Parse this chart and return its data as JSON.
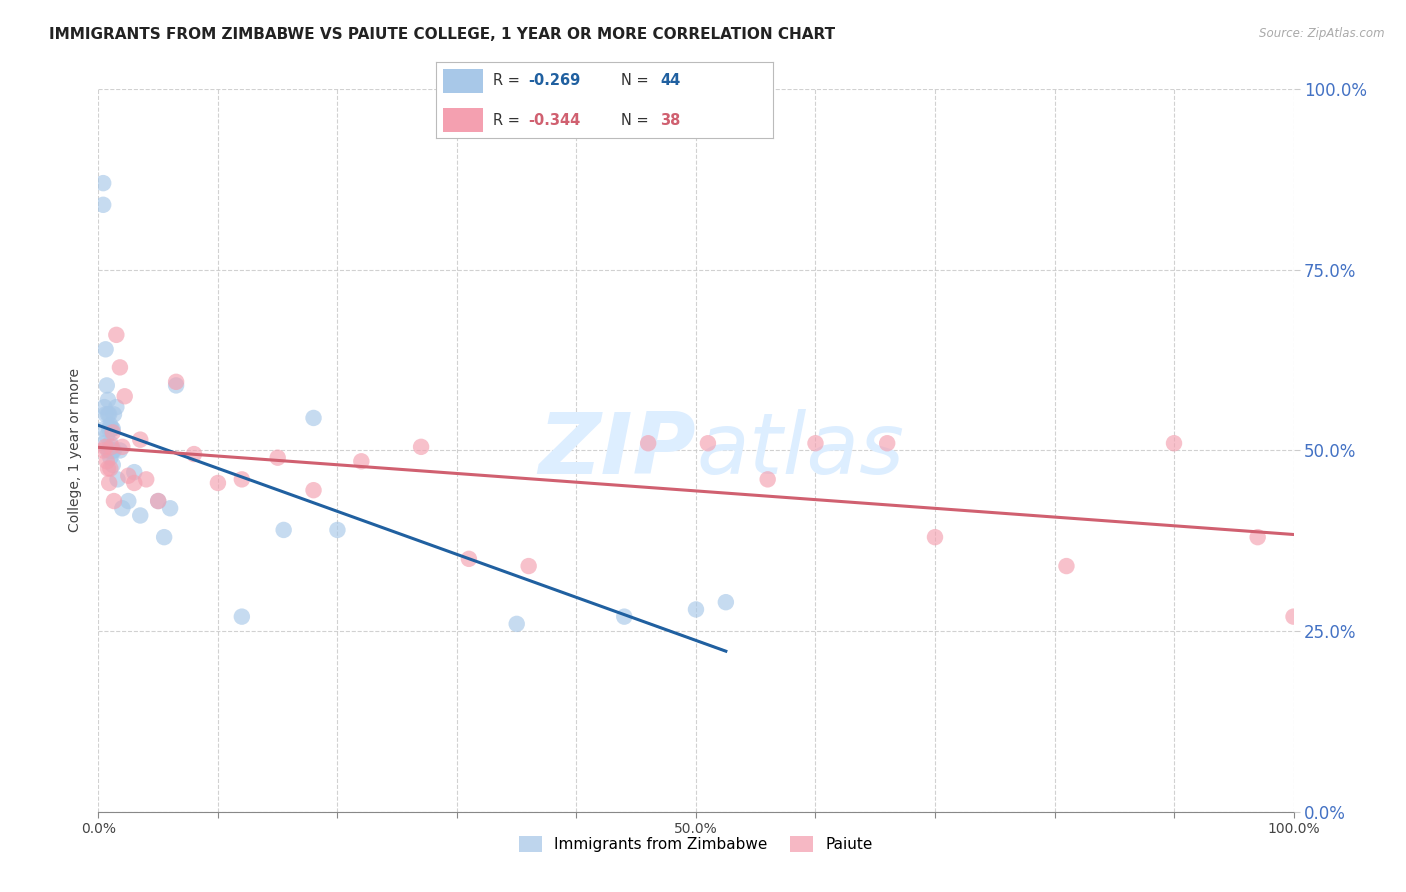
{
  "title": "IMMIGRANTS FROM ZIMBABWE VS PAIUTE COLLEGE, 1 YEAR OR MORE CORRELATION CHART",
  "source": "Source: ZipAtlas.com",
  "ylabel": "College, 1 year or more",
  "legend_label1": "Immigrants from Zimbabwe",
  "legend_label2": "Paiute",
  "r1": -0.269,
  "n1": 44,
  "r2": -0.344,
  "n2": 38,
  "color1": "#a8c8e8",
  "color2": "#f4a0b0",
  "line_color1": "#2060a0",
  "line_color2": "#d06070",
  "dashed_color": "#b0b8d0",
  "right_axis_color": "#4472c4",
  "xlim": [
    0.0,
    1.0
  ],
  "ylim": [
    0.0,
    1.0
  ],
  "xticks": [
    0.0,
    0.1,
    0.2,
    0.3,
    0.4,
    0.5,
    0.6,
    0.7,
    0.8,
    0.9,
    1.0
  ],
  "xticklabels": [
    "0.0%",
    "",
    "",
    "",
    "",
    "50.0%",
    "",
    "",
    "",
    "",
    "100.0%"
  ],
  "yticks": [
    0.0,
    0.25,
    0.5,
    0.75,
    1.0
  ],
  "yticklabels": [
    "",
    "",
    "",
    "",
    ""
  ],
  "right_yticks": [
    0.0,
    0.25,
    0.5,
    0.75,
    1.0
  ],
  "right_yticklabels": [
    "0.0%",
    "25.0%",
    "50.0%",
    "75.0%",
    "100.0%"
  ],
  "scatter1_x": [
    0.004,
    0.004,
    0.005,
    0.005,
    0.005,
    0.006,
    0.006,
    0.007,
    0.007,
    0.008,
    0.008,
    0.008,
    0.009,
    0.009,
    0.009,
    0.01,
    0.01,
    0.01,
    0.011,
    0.011,
    0.012,
    0.012,
    0.012,
    0.013,
    0.013,
    0.015,
    0.016,
    0.018,
    0.02,
    0.025,
    0.03,
    0.035,
    0.055,
    0.06,
    0.065,
    0.12,
    0.155,
    0.18,
    0.2,
    0.35,
    0.44,
    0.5,
    0.525,
    0.05
  ],
  "scatter1_y": [
    0.87,
    0.84,
    0.53,
    0.56,
    0.51,
    0.55,
    0.64,
    0.52,
    0.59,
    0.5,
    0.55,
    0.57,
    0.5,
    0.53,
    0.55,
    0.49,
    0.51,
    0.535,
    0.5,
    0.53,
    0.48,
    0.5,
    0.53,
    0.5,
    0.55,
    0.56,
    0.46,
    0.5,
    0.42,
    0.43,
    0.47,
    0.41,
    0.38,
    0.42,
    0.59,
    0.27,
    0.39,
    0.545,
    0.39,
    0.26,
    0.27,
    0.28,
    0.29,
    0.43
  ],
  "scatter2_x": [
    0.004,
    0.006,
    0.007,
    0.008,
    0.009,
    0.01,
    0.011,
    0.012,
    0.013,
    0.015,
    0.018,
    0.02,
    0.022,
    0.025,
    0.03,
    0.035,
    0.04,
    0.05,
    0.065,
    0.08,
    0.1,
    0.12,
    0.15,
    0.18,
    0.22,
    0.27,
    0.31,
    0.36,
    0.46,
    0.51,
    0.56,
    0.6,
    0.66,
    0.7,
    0.81,
    0.9,
    0.97,
    1.0
  ],
  "scatter2_y": [
    0.5,
    0.505,
    0.485,
    0.475,
    0.455,
    0.475,
    0.505,
    0.525,
    0.43,
    0.66,
    0.615,
    0.505,
    0.575,
    0.465,
    0.455,
    0.515,
    0.46,
    0.43,
    0.595,
    0.495,
    0.455,
    0.46,
    0.49,
    0.445,
    0.485,
    0.505,
    0.35,
    0.34,
    0.51,
    0.51,
    0.46,
    0.51,
    0.51,
    0.38,
    0.34,
    0.51,
    0.38,
    0.27
  ],
  "background_color": "#ffffff",
  "grid_color": "#cccccc",
  "watermark_color": "#ddeeff",
  "title_fontsize": 11,
  "axis_label_fontsize": 10,
  "tick_fontsize": 10,
  "legend_fontsize": 10
}
